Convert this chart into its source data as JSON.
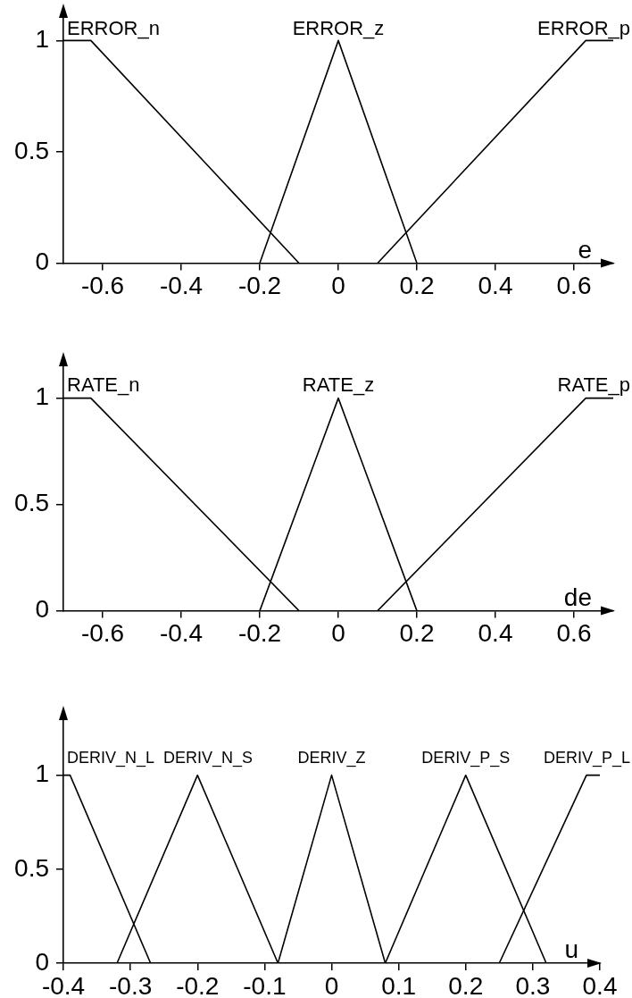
{
  "chart_data": [
    {
      "type": "line",
      "xlabel": "e",
      "xlim": [
        -0.7,
        0.7
      ],
      "xticks": [
        -0.6,
        -0.4,
        -0.2,
        0,
        0.2,
        0.4,
        0.6
      ],
      "ylim": [
        0,
        1.15
      ],
      "yticks": [
        0,
        0.5,
        1
      ],
      "marker": "none",
      "line_style": "solid",
      "series": [
        {
          "name": "ERROR_n",
          "color": "#000000",
          "x": [
            -0.7,
            -0.63,
            -0.1
          ],
          "values": [
            1,
            1,
            0
          ]
        },
        {
          "name": "ERROR_z",
          "color": "#000000",
          "x": [
            -0.2,
            0,
            0.2
          ],
          "values": [
            0,
            1,
            0
          ]
        },
        {
          "name": "ERROR_p",
          "color": "#000000",
          "x": [
            0.1,
            0.63,
            0.7
          ],
          "values": [
            0,
            1,
            1
          ]
        }
      ]
    },
    {
      "type": "line",
      "xlabel": "de",
      "xlim": [
        -0.7,
        0.7
      ],
      "xticks": [
        -0.6,
        -0.4,
        -0.2,
        0,
        0.2,
        0.4,
        0.6
      ],
      "ylim": [
        0,
        1.2
      ],
      "yticks": [
        0,
        0.5,
        1
      ],
      "marker": "none",
      "line_style": "solid",
      "series": [
        {
          "name": "RATE_n",
          "color": "#000000",
          "x": [
            -0.7,
            -0.63,
            -0.1
          ],
          "values": [
            1,
            1,
            0
          ]
        },
        {
          "name": "RATE_z",
          "color": "#000000",
          "x": [
            -0.2,
            0,
            0.2
          ],
          "values": [
            0,
            1,
            0
          ]
        },
        {
          "name": "RATE_p",
          "color": "#000000",
          "x": [
            0.1,
            0.63,
            0.7
          ],
          "values": [
            0,
            1,
            1
          ]
        }
      ]
    },
    {
      "type": "line",
      "xlabel": "u",
      "xlim": [
        -0.4,
        0.4
      ],
      "xticks": [
        -0.4,
        -0.3,
        -0.2,
        -0.1,
        0,
        0.1,
        0.2,
        0.3,
        0.4
      ],
      "ylim": [
        0,
        1.35
      ],
      "yticks": [
        0,
        0.5,
        1
      ],
      "marker": "none",
      "line_style": "solid",
      "series": [
        {
          "name": "DERIV_N_L",
          "color": "#000000",
          "x": [
            -0.4,
            -0.39,
            -0.27
          ],
          "values": [
            1,
            1,
            0
          ]
        },
        {
          "name": "DERIV_N_S",
          "color": "#000000",
          "x": [
            -0.32,
            -0.2,
            -0.08
          ],
          "values": [
            0,
            1,
            0
          ]
        },
        {
          "name": "DERIV_Z",
          "color": "#000000",
          "x": [
            -0.08,
            0,
            0.08
          ],
          "values": [
            0,
            1,
            0
          ]
        },
        {
          "name": "DERIV_P_S",
          "color": "#000000",
          "x": [
            0.08,
            0.2,
            0.32
          ],
          "values": [
            0,
            1,
            0
          ]
        },
        {
          "name": "DERIV_P_L",
          "color": "#000000",
          "x": [
            0.25,
            0.38,
            0.4
          ],
          "values": [
            0,
            1,
            1
          ]
        }
      ]
    }
  ]
}
